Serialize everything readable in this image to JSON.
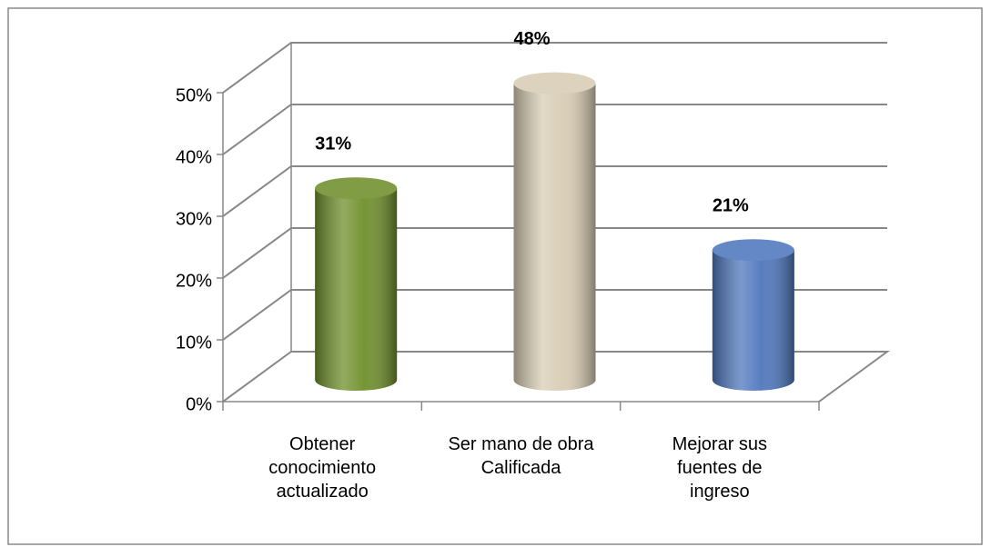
{
  "chart_data": {
    "type": "bar",
    "categories": [
      "Obtener\nconocimiento\nactualizado",
      "Ser mano de obra\nCalificada",
      "Mejorar sus\nfuentes de\ningreso"
    ],
    "values": [
      31,
      48,
      21
    ],
    "value_labels": [
      "31%",
      "48%",
      "21%"
    ],
    "colors": [
      "#6f8f2c",
      "#d8ccb4",
      "#4f77bd"
    ],
    "ylim": [
      0,
      50
    ],
    "yticks": [
      {
        "value": 0,
        "label": "0%"
      },
      {
        "value": 10,
        "label": "10%"
      },
      {
        "value": 20,
        "label": "20%"
      },
      {
        "value": 30,
        "label": "30%"
      },
      {
        "value": 40,
        "label": "40%"
      },
      {
        "value": 50,
        "label": "50%"
      }
    ],
    "grid": true
  }
}
